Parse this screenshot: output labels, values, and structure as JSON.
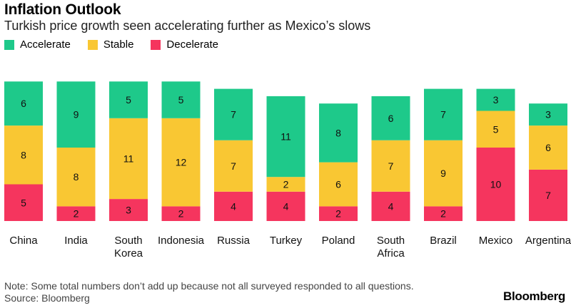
{
  "title": "Inflation Outlook",
  "subtitle": "Turkish price growth seen accelerating further as Mexico’s slows",
  "legend": [
    {
      "label": "Accelerate",
      "color": "#1ec98a"
    },
    {
      "label": "Stable",
      "color": "#f9c733"
    },
    {
      "label": "Decelerate",
      "color": "#f5355e"
    }
  ],
  "note": "Note: Some total numbers don’t add up because not all surveyed responded to all questions.",
  "source": "Source: Bloomberg",
  "brand": "Bloomberg",
  "chart_data": {
    "type": "bar",
    "stacked": true,
    "categories": [
      [
        "China"
      ],
      [
        "India"
      ],
      [
        "South",
        "Korea"
      ],
      [
        "Indonesia"
      ],
      [
        "Russia"
      ],
      [
        "Turkey"
      ],
      [
        "Poland"
      ],
      [
        "South",
        "Africa"
      ],
      [
        "Brazil"
      ],
      [
        "Mexico"
      ],
      [
        "Argentina"
      ]
    ],
    "series": [
      {
        "name": "Decelerate",
        "color": "#f5355e",
        "values": [
          5,
          2,
          3,
          2,
          4,
          4,
          2,
          4,
          2,
          10,
          7
        ]
      },
      {
        "name": "Stable",
        "color": "#f9c733",
        "values": [
          8,
          8,
          11,
          12,
          7,
          2,
          6,
          7,
          9,
          5,
          6
        ]
      },
      {
        "name": "Accelerate",
        "color": "#1ec98a",
        "values": [
          6,
          9,
          5,
          5,
          7,
          11,
          8,
          6,
          7,
          3,
          3
        ]
      }
    ],
    "ylim": [
      0,
      19
    ],
    "grid": false,
    "legend_position": "top-left",
    "data_labels": true
  }
}
